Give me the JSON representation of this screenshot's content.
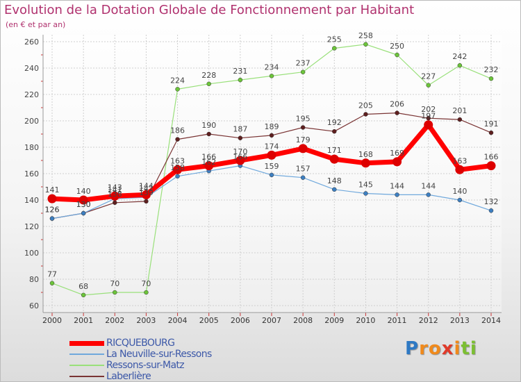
{
  "header": {
    "title": "Evolution de la Dotation Globale de Fonctionnement par Habitant",
    "subtitle": "(en € et par an)"
  },
  "brand": {
    "logo_letters": [
      "P",
      "r",
      "o",
      "x",
      "i",
      "t",
      "i"
    ],
    "logo_colors": [
      "#2e79c4",
      "#f08a1c",
      "#f08a1c",
      "#e03a2a",
      "#f08a1c",
      "#7cbf32",
      "#7cbf32"
    ]
  },
  "chart_data": {
    "type": "line",
    "title": "Evolution de la Dotation Globale de Fonctionnement par Habitant",
    "subtitle": "(en € et par an)",
    "xlabel": "",
    "ylabel": "",
    "ylim": [
      60,
      260
    ],
    "yticks": [
      60,
      80,
      100,
      120,
      140,
      160,
      180,
      200,
      220,
      240,
      260
    ],
    "grid": true,
    "legend_position": "bottom-left",
    "x": [
      2000,
      2001,
      2002,
      2003,
      2004,
      2005,
      2006,
      2007,
      2008,
      2009,
      2010,
      2011,
      2012,
      2013,
      2014
    ],
    "series": [
      {
        "name": "RICQUEBOURG",
        "color": "#ff0000",
        "marker": "#dd0000",
        "width": 7,
        "values": [
          141,
          140,
          143,
          144,
          163,
          166,
          170,
          174,
          179,
          171,
          168,
          169,
          197,
          163,
          166
        ]
      },
      {
        "name": "La Neuville-sur-Ressons",
        "color": "#6fa8dc",
        "marker": "#3d7fc1",
        "width": 1.2,
        "values": [
          126,
          130,
          141,
          142,
          158,
          162,
          166,
          159,
          157,
          148,
          145,
          144,
          144,
          140,
          132
        ]
      },
      {
        "name": "Ressons-sur-Matz",
        "color": "#99e07a",
        "marker": "#6cc43a",
        "width": 1.2,
        "values": [
          77,
          68,
          70,
          70,
          224,
          228,
          231,
          234,
          237,
          255,
          258,
          250,
          227,
          242,
          232
        ]
      },
      {
        "name": "Laberlière",
        "color": "#7a3434",
        "marker": "#5e1f1f",
        "width": 1.2,
        "values": [
          126,
          130,
          138,
          139,
          186,
          190,
          187,
          189,
          195,
          192,
          205,
          206,
          202,
          201,
          191
        ]
      }
    ]
  }
}
